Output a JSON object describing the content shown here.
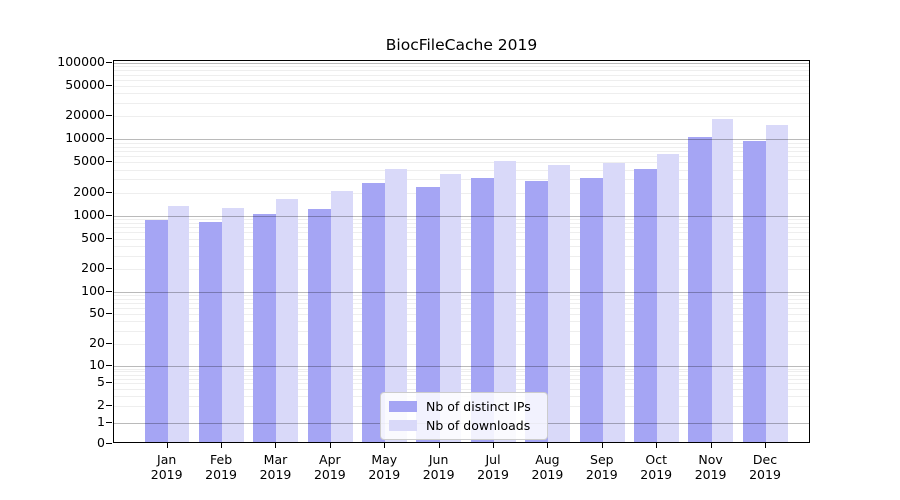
{
  "title": "BiocFileCache 2019",
  "chart_data": {
    "type": "bar",
    "title": "BiocFileCache 2019",
    "categories": [
      "Jan 2019",
      "Feb 2019",
      "Mar 2019",
      "Apr 2019",
      "May 2019",
      "Jun 2019",
      "Jul 2019",
      "Aug 2019",
      "Sep 2019",
      "Oct 2019",
      "Nov 2019",
      "Dec 2019"
    ],
    "x_tick_months": [
      "Jan",
      "Feb",
      "Mar",
      "Apr",
      "May",
      "Jun",
      "Jul",
      "Aug",
      "Sep",
      "Oct",
      "Nov",
      "Dec"
    ],
    "x_tick_year": "2019",
    "series": [
      {
        "name": "Nb of distinct IPs",
        "color": "#a5a5f4",
        "values": [
          820,
          780,
          980,
          1150,
          2500,
          2230,
          2920,
          2710,
          2960,
          3860,
          10100,
          9000
        ]
      },
      {
        "name": "Nb of downloads",
        "color": "#d9d9f9",
        "values": [
          1240,
          1190,
          1560,
          1970,
          3840,
          3300,
          4890,
          4330,
          4640,
          5960,
          17300,
          14600
        ]
      }
    ],
    "yscale": "symlog",
    "yticks": [
      0,
      1,
      2,
      5,
      10,
      20,
      50,
      100,
      200,
      500,
      1000,
      2000,
      5000,
      10000,
      20000,
      50000,
      100000
    ],
    "ylim": [
      0,
      100000
    ],
    "grid": true,
    "legend_position": "lower-center"
  },
  "legend": {
    "items": [
      {
        "label": "Nb of distinct IPs",
        "color": "#a5a5f4"
      },
      {
        "label": "Nb of downloads",
        "color": "#d9d9f9"
      }
    ]
  }
}
